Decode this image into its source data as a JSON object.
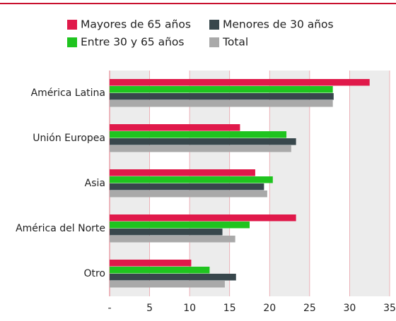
{
  "chart_data": {
    "type": "bar",
    "orientation": "horizontal",
    "categories": [
      "América Latina",
      "Unión Europea",
      "Asia",
      "América del Norte",
      "Otro"
    ],
    "series": [
      {
        "name": "Mayores de 65 años",
        "color": "#e0194a",
        "values": [
          32.5,
          16.3,
          18.2,
          23.3,
          10.2
        ]
      },
      {
        "name": "Entre 30 y 65 años",
        "color": "#1fc41f",
        "values": [
          27.9,
          22.1,
          20.4,
          17.5,
          12.5
        ]
      },
      {
        "name": "Menores de 30 años",
        "color": "#38474c",
        "values": [
          28.0,
          23.3,
          19.3,
          14.1,
          15.8
        ]
      },
      {
        "name": "Total",
        "color": "#a9a9a9",
        "values": [
          27.9,
          22.7,
          19.7,
          15.7,
          14.4
        ]
      }
    ],
    "xlim": [
      0,
      35
    ],
    "xticks": [
      {
        "value": 0,
        "label": "-"
      },
      5,
      10,
      15,
      20,
      25,
      30,
      35
    ],
    "grid": true
  }
}
